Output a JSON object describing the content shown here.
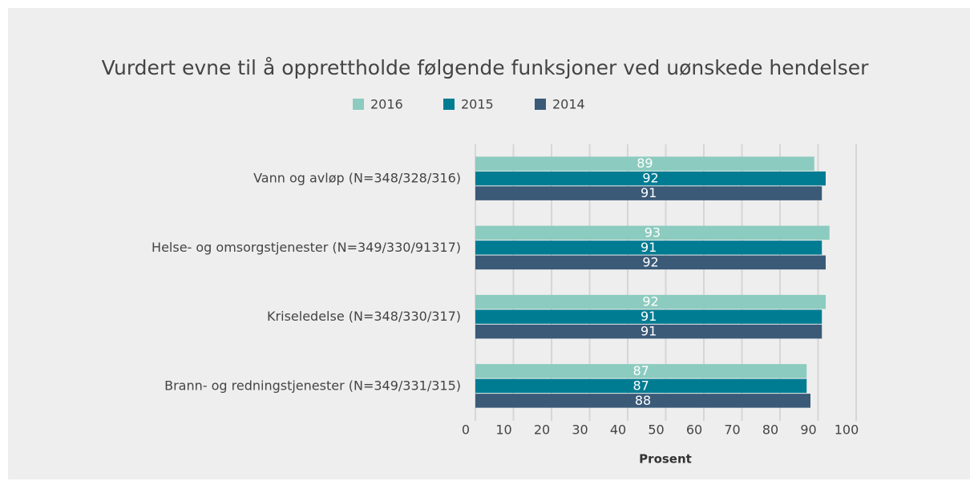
{
  "chart_data": {
    "type": "hbar",
    "title": "Vurdert evne til å opprettholde følgende funksjoner ved uønskede hendelser",
    "categories": [
      "Vann og avløp (N=348/328/316)",
      "Helse- og omsorgstjenester (N=349/330/91317)",
      "Kriseledelse (N=348/330/317)",
      "Brann- og redningstjenester (N=349/331/315)"
    ],
    "series": [
      {
        "name": "2016",
        "color": "#8ccbbf",
        "values": [
          89,
          93,
          92,
          87
        ]
      },
      {
        "name": "2015",
        "color": "#007c92",
        "values": [
          92,
          91,
          91,
          87
        ]
      },
      {
        "name": "2014",
        "color": "#3a5a78",
        "values": [
          91,
          92,
          91,
          88
        ]
      }
    ],
    "xlabel": "Prosent",
    "xlim": [
      0,
      100
    ],
    "xticks": [
      0,
      10,
      20,
      30,
      40,
      50,
      60,
      70,
      80,
      90,
      100
    ],
    "grid": true
  }
}
